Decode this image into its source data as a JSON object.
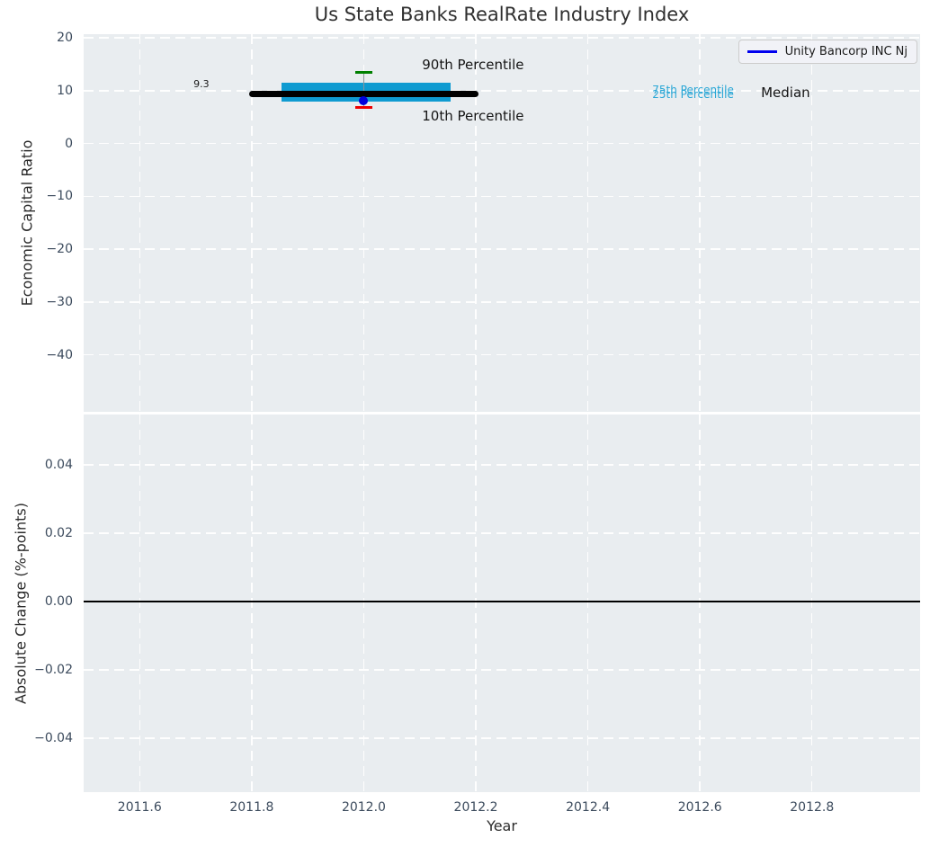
{
  "title": "Us State Banks RealRate Industry Index",
  "legend": {
    "label": "Unity Bancorp INC Nj",
    "line_color": "#0000ee"
  },
  "colors": {
    "iqr_box": "#0f9bd1",
    "percentile_text": "#2aa7d6",
    "p90_cap": "#008000",
    "p10_cap": "#ee0000",
    "company_dot": "#0000dd",
    "median_line": "#000000",
    "zero_line": "#000000",
    "plot_background": "#e9edf0",
    "grid": "#ffffff",
    "tick_label": "#3c4b5d",
    "axis_label": "#2b2b2b",
    "title_text": "#2f2f2f"
  },
  "chart_data": [
    {
      "type": "boxplot",
      "title": "Us State Banks RealRate Industry Index",
      "ylabel": "Economic Capital Ratio",
      "xlim": [
        2011.5,
        2012.993
      ],
      "ylim": [
        -50.8,
        20.7
      ],
      "grid": "white-dashed",
      "xtick_values": [
        2011.6,
        2011.8,
        2012.0,
        2012.2,
        2012.4,
        2012.6,
        2012.8
      ],
      "ytick_values": [
        20,
        10,
        0,
        -10,
        -20,
        -30,
        -40
      ],
      "ytick_labels": [
        "20",
        "10",
        "0",
        "−10",
        "−20",
        "−30",
        "−40"
      ],
      "industry_distribution": {
        "year": 2012,
        "median": 9.3,
        "p10": 6.8,
        "p25": 7.9,
        "p75": 11.5,
        "p90": 13.5,
        "median_x_span": [
          2011.795,
          2012.205
        ],
        "box_x_span": [
          2011.853,
          2012.155
        ],
        "cap_halfwidth_years": 0.015
      },
      "company_point": {
        "label": "Unity Bancorp INC Nj",
        "year": 2012,
        "value": 8.1
      },
      "annotations": [
        {
          "id": "median-value",
          "text": "9.3",
          "x": 2011.696,
          "y": 11.2,
          "size": 11,
          "color": "#1a1a1a"
        },
        {
          "id": "p90-label",
          "text": "90th Percentile",
          "x": 2012.104,
          "y": 14.9,
          "size": 15,
          "color": "#141414"
        },
        {
          "id": "p10-label",
          "text": "10th Percentile",
          "x": 2012.104,
          "y": 5.2,
          "size": 15,
          "color": "#141414"
        },
        {
          "id": "p75-label",
          "text": "75th Percentile",
          "x": 2012.515,
          "y": 10.15,
          "size": 12,
          "color": "#2aa7d6"
        },
        {
          "id": "p25-label",
          "text": "25th Percentile",
          "x": 2012.515,
          "y": 9.25,
          "size": 12,
          "color": "#2aa7d6"
        },
        {
          "id": "median-label",
          "text": "Median",
          "x": 2012.709,
          "y": 9.5,
          "size": 15,
          "color": "#141414"
        }
      ]
    },
    {
      "type": "line",
      "ylabel": "Absolute Change (%-points)",
      "xlabel": "Year",
      "xlim": [
        2011.5,
        2012.993
      ],
      "xtick_values": [
        2011.6,
        2011.8,
        2012.0,
        2012.2,
        2012.4,
        2012.6,
        2012.8
      ],
      "xtick_labels": [
        "2011.6",
        "2011.8",
        "2012.0",
        "2012.2",
        "2012.4",
        "2012.6",
        "2012.8"
      ],
      "ylim": [
        -0.0558,
        0.0547
      ],
      "ytick_values": [
        0.04,
        0.02,
        0,
        -0.02,
        -0.04
      ],
      "ytick_labels": [
        "0.04",
        "0.02",
        "0.00",
        "−0.02",
        "−0.04"
      ],
      "grid": "white-dashed",
      "zero_line_y": 0,
      "series": []
    }
  ]
}
